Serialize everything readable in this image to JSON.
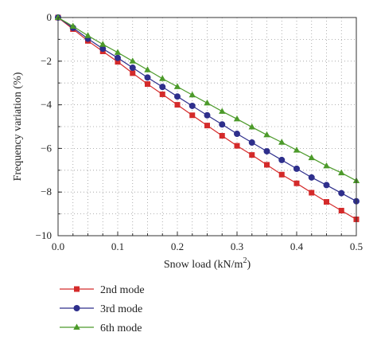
{
  "chart_data": {
    "type": "line",
    "xlabel": "Snow load (kN/m",
    "xlabel_sup": "2",
    "xlabel_suffix": ")",
    "ylabel": "Frequency variation (%)",
    "xlim": [
      0,
      0.5
    ],
    "ylim": [
      -10,
      0
    ],
    "x_ticks": [
      0.0,
      0.1,
      0.2,
      0.3,
      0.4,
      0.5
    ],
    "x_tick_labels": [
      "0.0",
      "0.1",
      "0.2",
      "0.3",
      "0.4",
      "0.5"
    ],
    "y_ticks": [
      0,
      -2,
      -4,
      -6,
      -8,
      -10
    ],
    "y_tick_labels": [
      "0",
      "−2",
      "−4",
      "−6",
      "−8",
      "−10"
    ],
    "grid": "dotted",
    "legend_position": "bottom-left",
    "x": [
      0,
      0.025,
      0.05,
      0.075,
      0.1,
      0.125,
      0.15,
      0.175,
      0.2,
      0.225,
      0.25,
      0.275,
      0.3,
      0.325,
      0.35,
      0.375,
      0.4,
      0.425,
      0.45,
      0.475,
      0.5
    ],
    "series": [
      {
        "name": "2nd mode",
        "color": "#d42a2a",
        "marker": "square",
        "values": [
          0,
          -0.53,
          -1.07,
          -1.55,
          -2.03,
          -2.55,
          -3.05,
          -3.52,
          -4.0,
          -4.48,
          -4.95,
          -5.42,
          -5.88,
          -6.3,
          -6.75,
          -7.2,
          -7.6,
          -8.03,
          -8.45,
          -8.85,
          -9.25
        ]
      },
      {
        "name": "3rd mode",
        "color": "#2e2f8c",
        "marker": "circle",
        "values": [
          0,
          -0.47,
          -0.97,
          -1.43,
          -1.85,
          -2.3,
          -2.75,
          -3.18,
          -3.62,
          -4.05,
          -4.48,
          -4.9,
          -5.33,
          -5.73,
          -6.13,
          -6.53,
          -6.93,
          -7.33,
          -7.68,
          -8.05,
          -8.42
        ]
      },
      {
        "name": "6th mode",
        "color": "#4c9a2a",
        "marker": "triangle",
        "values": [
          0,
          -0.4,
          -0.83,
          -1.23,
          -1.6,
          -2.0,
          -2.4,
          -2.8,
          -3.17,
          -3.55,
          -3.92,
          -4.3,
          -4.65,
          -5.02,
          -5.38,
          -5.72,
          -6.08,
          -6.43,
          -6.8,
          -7.12,
          -7.48
        ]
      }
    ]
  }
}
